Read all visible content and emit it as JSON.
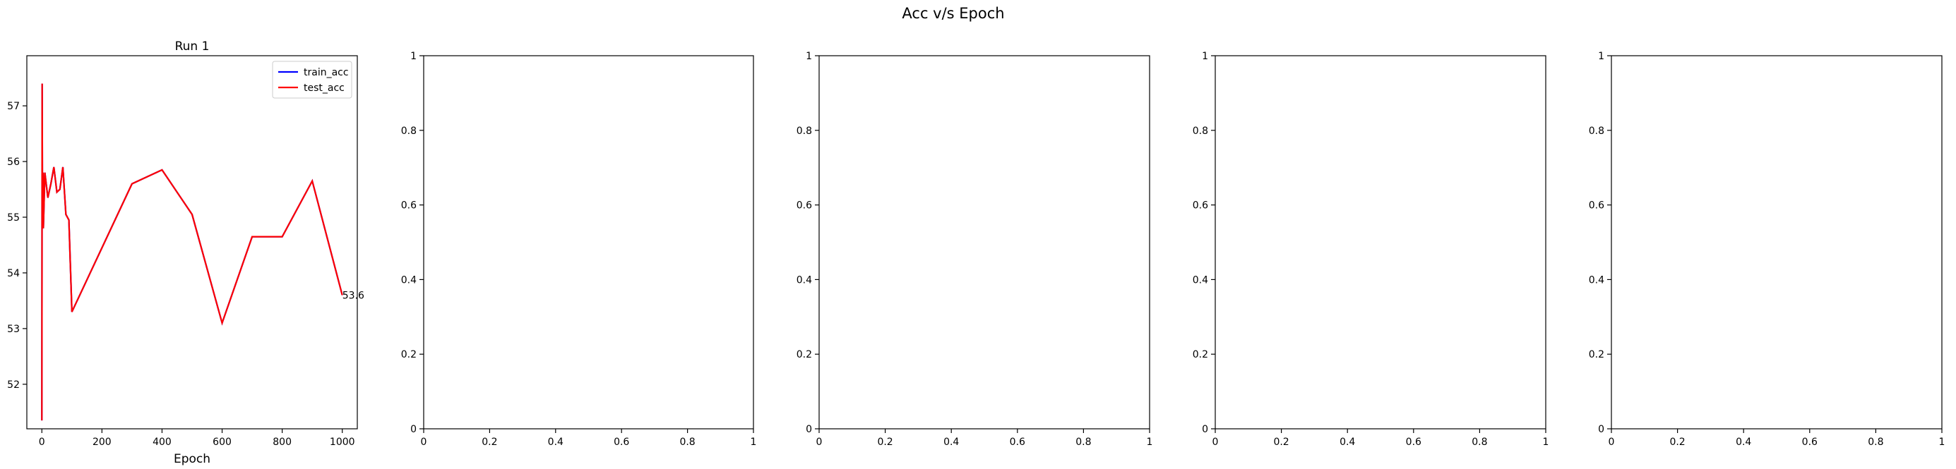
{
  "figure": {
    "suptitle": "Acc v/s Epoch"
  },
  "chart_data": [
    {
      "type": "line",
      "title": "Run 1",
      "xlabel": "Epoch",
      "ylabel": "",
      "xlim": [
        -50,
        1050
      ],
      "ylim": [
        51.2,
        57.9
      ],
      "xticks": [
        0,
        200,
        400,
        600,
        800,
        1000
      ],
      "yticks": [
        52,
        53,
        54,
        55,
        56,
        57
      ],
      "grid": false,
      "legend": "upper right",
      "series": [
        {
          "name": "train_acc",
          "color": "#0000ff",
          "x": [
            0,
            1,
            2,
            3,
            4,
            5,
            10,
            20,
            30,
            40,
            50,
            60,
            70,
            80,
            90,
            100,
            300,
            400,
            500,
            600,
            700,
            800,
            900,
            1000
          ],
          "y": [
            51.35,
            57.4,
            55.3,
            54.8,
            55.8,
            54.8,
            55.8,
            55.35,
            55.6,
            55.9,
            55.45,
            55.5,
            55.9,
            55.05,
            54.95,
            53.3,
            55.6,
            55.85,
            55.05,
            53.1,
            54.65,
            54.65,
            55.65,
            53.6
          ]
        },
        {
          "name": "test_acc",
          "color": "#ff0000",
          "x": [
            0,
            1,
            2,
            3,
            4,
            5,
            10,
            20,
            30,
            40,
            50,
            60,
            70,
            80,
            90,
            100,
            300,
            400,
            500,
            600,
            700,
            800,
            900,
            1000
          ],
          "y": [
            51.35,
            57.4,
            55.3,
            54.8,
            55.8,
            54.8,
            55.8,
            55.35,
            55.6,
            55.9,
            55.45,
            55.5,
            55.9,
            55.05,
            54.95,
            53.3,
            55.6,
            55.85,
            55.05,
            53.1,
            54.65,
            54.65,
            55.65,
            53.6
          ]
        }
      ],
      "annotations": [
        {
          "text": "53.6",
          "x": 1000,
          "y": 53.6
        }
      ]
    },
    {
      "type": "line",
      "title": "",
      "xlabel": "",
      "xlim": [
        0,
        1
      ],
      "ylim": [
        0,
        1
      ],
      "xticks": [
        0,
        0.2,
        0.4,
        0.6,
        0.8,
        1
      ],
      "yticks": [
        0,
        0.2,
        0.4,
        0.6,
        0.8,
        1
      ],
      "series": []
    },
    {
      "type": "line",
      "title": "",
      "xlabel": "",
      "xlim": [
        0,
        1
      ],
      "ylim": [
        0,
        1
      ],
      "xticks": [
        0,
        0.2,
        0.4,
        0.6,
        0.8,
        1
      ],
      "yticks": [
        0,
        0.2,
        0.4,
        0.6,
        0.8,
        1
      ],
      "series": []
    },
    {
      "type": "line",
      "title": "",
      "xlabel": "",
      "xlim": [
        0,
        1
      ],
      "ylim": [
        0,
        1
      ],
      "xticks": [
        0,
        0.2,
        0.4,
        0.6,
        0.8,
        1
      ],
      "yticks": [
        0,
        0.2,
        0.4,
        0.6,
        0.8,
        1
      ],
      "series": []
    },
    {
      "type": "line",
      "title": "",
      "xlabel": "",
      "xlim": [
        0,
        1
      ],
      "ylim": [
        0,
        1
      ],
      "xticks": [
        0,
        0.2,
        0.4,
        0.6,
        0.8,
        1
      ],
      "yticks": [
        0,
        0.2,
        0.4,
        0.6,
        0.8,
        1
      ],
      "series": []
    }
  ]
}
